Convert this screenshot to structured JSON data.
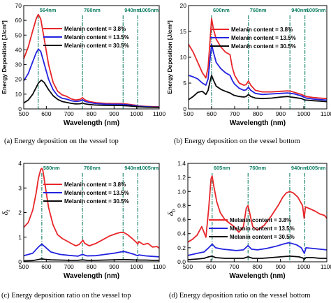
{
  "colors": {
    "s1": "#e8262a",
    "s2": "#2323e0",
    "s3": "#0a0a0a",
    "marker": "#0f7f63"
  },
  "chart_data": [
    {
      "type": "line",
      "caption": "(a) Energy deposition on the vessel top",
      "xlabel": "Wavelength (nm)",
      "ylabel": "Energy Deposition [J/cm³]",
      "xlim": [
        500,
        1100
      ],
      "ylim": [
        0,
        70
      ],
      "xticks": [
        500,
        600,
        700,
        800,
        900,
        1000,
        1100
      ],
      "yticks": [
        0,
        10,
        20,
        30,
        40,
        50,
        60,
        70
      ],
      "grid": false,
      "legend_placement": "top-right",
      "markers": [
        {
          "x": 564,
          "label": "564nm"
        },
        {
          "x": 760,
          "label": "760nm"
        },
        {
          "x": 940,
          "label": "940nm"
        },
        {
          "x": 1005,
          "label": "1005nm"
        }
      ],
      "series": [
        {
          "name": "Melanin content = 3.8%",
          "x": [
            500,
            520,
            540,
            555,
            564,
            575,
            590,
            610,
            630,
            650,
            670,
            690,
            710,
            730,
            750,
            760,
            770,
            790,
            820,
            860,
            900,
            930,
            945,
            960,
            990,
            1000,
            1005,
            1010,
            1040,
            1070,
            1100
          ],
          "y": [
            34,
            42,
            53,
            61,
            64,
            61,
            48,
            30,
            18,
            12,
            9.5,
            8.5,
            6.8,
            6,
            6.5,
            7.6,
            6.2,
            5,
            4.2,
            3.8,
            3.6,
            3.6,
            3.4,
            3.2,
            2.6,
            2.4,
            2.1,
            2,
            1.7,
            1.5,
            1.4
          ]
        },
        {
          "name": "Melanin content = 13.5%",
          "x": [
            500,
            520,
            540,
            555,
            565,
            575,
            590,
            610,
            630,
            650,
            670,
            690,
            710,
            730,
            750,
            760,
            770,
            790,
            820,
            860,
            900,
            930,
            945,
            960,
            990,
            1000,
            1005,
            1010,
            1040,
            1070,
            1100
          ],
          "y": [
            19,
            24,
            32,
            38,
            40.5,
            39,
            31,
            20,
            13,
            9,
            7.2,
            6.6,
            5.6,
            5,
            5.4,
            6.2,
            5.2,
            4.3,
            3.6,
            3.2,
            3.1,
            3.1,
            3,
            2.8,
            2.3,
            2.1,
            1.9,
            1.8,
            1.5,
            1.3,
            1.2
          ]
        },
        {
          "name": "Melanin content = 30.5%",
          "x": [
            500,
            520,
            540,
            555,
            565,
            578,
            590,
            610,
            630,
            650,
            670,
            690,
            710,
            730,
            750,
            760,
            770,
            790,
            820,
            860,
            900,
            930,
            945,
            960,
            990,
            1000,
            1005,
            1010,
            1040,
            1070,
            1100
          ],
          "y": [
            4,
            6,
            10,
            14.5,
            17.5,
            19.5,
            18,
            13,
            9,
            6.5,
            5,
            4.4,
            3.8,
            3.4,
            3.5,
            4,
            3.5,
            3,
            2.6,
            2.4,
            2.3,
            2.3,
            2.2,
            2.1,
            1.7,
            1.6,
            1.5,
            1.4,
            1.2,
            1.1,
            1
          ]
        }
      ]
    },
    {
      "type": "line",
      "caption": "(b) Energy deposition on the vessel bottom",
      "xlabel": "Wavelength (nm)",
      "ylabel": "Energy Deposition [J/cm³]",
      "xlim": [
        500,
        1100
      ],
      "ylim": [
        0,
        20
      ],
      "xticks": [
        500,
        600,
        700,
        800,
        900,
        1000,
        1100
      ],
      "yticks": [
        0,
        5,
        10,
        15,
        20
      ],
      "grid": false,
      "legend_placement": "top-right",
      "markers": [
        {
          "x": 600,
          "label": "600nm"
        },
        {
          "x": 760,
          "label": "760nm"
        },
        {
          "x": 940,
          "label": "940nm"
        },
        {
          "x": 1005,
          "label": "1005nm"
        }
      ],
      "series": [
        {
          "name": "Melanin content = 3.8%",
          "x": [
            500,
            520,
            540,
            560,
            575,
            585,
            593,
            600,
            608,
            620,
            640,
            660,
            680,
            690,
            700,
            720,
            740,
            750,
            760,
            770,
            790,
            820,
            860,
            900,
            930,
            945,
            960,
            990,
            1000,
            1005,
            1010,
            1040,
            1070,
            1100
          ],
          "y": [
            12.5,
            11,
            9,
            7,
            6,
            8,
            13,
            17.5,
            15.5,
            13.5,
            12,
            11,
            10.5,
            8,
            6.5,
            5,
            4.6,
            4.7,
            5.4,
            4.6,
            3.6,
            3.3,
            3.3,
            3.4,
            3.5,
            3.4,
            3.2,
            2.8,
            2.6,
            2.5,
            2.4,
            2.2,
            2.1,
            2
          ]
        },
        {
          "name": "Melanin content = 13.5%",
          "x": [
            500,
            520,
            540,
            560,
            575,
            585,
            593,
            600,
            608,
            620,
            640,
            660,
            680,
            690,
            700,
            720,
            740,
            750,
            760,
            770,
            790,
            820,
            860,
            900,
            930,
            945,
            960,
            990,
            1000,
            1005,
            1010,
            1040,
            1070,
            1100
          ],
          "y": [
            6.5,
            6.2,
            5.8,
            5,
            4.6,
            5.8,
            9.5,
            12.5,
            11,
            9,
            7.8,
            7,
            6.5,
            5.5,
            4.8,
            4,
            3.6,
            3.7,
            4.2,
            3.6,
            3,
            2.8,
            2.9,
            3,
            3.1,
            3,
            2.9,
            2.5,
            2.3,
            2.2,
            2.1,
            1.9,
            1.8,
            1.7
          ]
        },
        {
          "name": "Melanin content = 30.5%",
          "x": [
            500,
            520,
            540,
            560,
            575,
            585,
            593,
            600,
            608,
            620,
            640,
            660,
            680,
            690,
            700,
            720,
            740,
            750,
            760,
            770,
            790,
            820,
            860,
            900,
            930,
            945,
            960,
            990,
            1000,
            1005,
            1010,
            1040,
            1070,
            1100
          ],
          "y": [
            1.8,
            2.4,
            3.2,
            3.4,
            2.8,
            3.6,
            5.3,
            6.5,
            5.6,
            4.4,
            3.8,
            3.4,
            3.1,
            2.8,
            2.6,
            2.4,
            2.3,
            2.4,
            2.8,
            2.4,
            2.1,
            2,
            2.1,
            2.3,
            2.4,
            2.3,
            2.2,
            2,
            1.8,
            1.7,
            1.7,
            1.6,
            1.5,
            1.4
          ]
        }
      ]
    },
    {
      "type": "line",
      "caption": "(c) Energy deposition ratio on the vessel top",
      "xlabel": "Wavelength (nm)",
      "ylabel": "δ",
      "ylabel_sub": "t",
      "xlim": [
        500,
        1100
      ],
      "ylim": [
        0,
        4
      ],
      "xticks": [
        500,
        600,
        700,
        800,
        900,
        1000,
        1100
      ],
      "yticks": [
        0,
        1,
        2,
        3,
        4
      ],
      "grid": false,
      "legend_placement": "top-right",
      "markers": [
        {
          "x": 580,
          "label": "580nm"
        },
        {
          "x": 760,
          "label": "760nm"
        },
        {
          "x": 940,
          "label": "940nm"
        },
        {
          "x": 1005,
          "label": "1005nm"
        }
      ],
      "series": [
        {
          "name": "Melanin content = 3.8%",
          "x": [
            500,
            520,
            540,
            555,
            565,
            575,
            580,
            585,
            595,
            610,
            630,
            650,
            670,
            690,
            710,
            730,
            745,
            755,
            762,
            770,
            790,
            820,
            850,
            880,
            910,
            930,
            945,
            960,
            980,
            1000,
            1005,
            1010,
            1030,
            1050,
            1070,
            1090,
            1100
          ],
          "y": [
            1.4,
            1.6,
            2.1,
            2.8,
            3.4,
            3.75,
            3.8,
            3.7,
            3.1,
            2.2,
            1.5,
            1.1,
            0.95,
            0.85,
            0.75,
            0.65,
            0.7,
            0.8,
            0.88,
            0.75,
            0.65,
            0.75,
            0.9,
            1.05,
            1.15,
            1.2,
            1.18,
            1.1,
            0.95,
            0.78,
            0.72,
            0.82,
            0.7,
            0.75,
            0.6,
            0.62,
            0.55
          ]
        },
        {
          "name": "Melanin content = 13.5%",
          "x": [
            500,
            540,
            565,
            580,
            595,
            620,
            660,
            700,
            740,
            760,
            780,
            820,
            860,
            900,
            930,
            945,
            960,
            990,
            1000,
            1005,
            1010,
            1040,
            1070,
            1100
          ],
          "y": [
            0.25,
            0.35,
            0.6,
            0.72,
            0.6,
            0.4,
            0.3,
            0.26,
            0.23,
            0.3,
            0.24,
            0.25,
            0.3,
            0.35,
            0.4,
            0.42,
            0.38,
            0.3,
            0.26,
            0.25,
            0.28,
            0.24,
            0.22,
            0.2
          ]
        },
        {
          "name": "Melanin content = 30.5%",
          "x": [
            500,
            540,
            565,
            580,
            595,
            620,
            660,
            700,
            740,
            760,
            780,
            820,
            860,
            900,
            940,
            980,
            1005,
            1040,
            1070,
            1100
          ],
          "y": [
            0.04,
            0.05,
            0.09,
            0.12,
            0.1,
            0.08,
            0.07,
            0.06,
            0.06,
            0.08,
            0.06,
            0.06,
            0.07,
            0.08,
            0.09,
            0.08,
            0.07,
            0.07,
            0.06,
            0.06
          ]
        }
      ]
    },
    {
      "type": "line",
      "caption": "(d) Energy deposition ratio on the vessel bottom",
      "xlabel": "Wavelength (nm)",
      "ylabel": "δ",
      "ylabel_sub": "b",
      "xlim": [
        500,
        1100
      ],
      "ylim": [
        0,
        1.4
      ],
      "xticks": [
        500,
        600,
        700,
        800,
        900,
        1000,
        1100
      ],
      "yticks": [
        0,
        0.2,
        0.4,
        0.6,
        0.8,
        1.0,
        1.2,
        1.4
      ],
      "ytick_labels": [
        "0.0",
        "0.2",
        "0.4",
        "0.6",
        "0.8",
        "1.0",
        "1.2",
        "1.4"
      ],
      "grid": false,
      "legend_placement": "bottom-right",
      "markers": [
        {
          "x": 605,
          "label": "605nm"
        },
        {
          "x": 760,
          "label": "760nm"
        },
        {
          "x": 940,
          "label": "940nm"
        },
        {
          "x": 1005,
          "label": "1005nm"
        }
      ],
      "series": [
        {
          "name": "Melanin content = 3.8%",
          "x": [
            500,
            520,
            540,
            560,
            578,
            590,
            600,
            605,
            612,
            625,
            640,
            660,
            680,
            700,
            720,
            740,
            752,
            760,
            768,
            780,
            800,
            830,
            860,
            890,
            910,
            925,
            940,
            955,
            975,
            995,
            1000,
            1002,
            1008,
            1030,
            1050,
            1070,
            1090,
            1100
          ],
          "y": [
            0.28,
            0.32,
            0.38,
            0.5,
            0.35,
            0.75,
            1.18,
            1.22,
            1.08,
            0.85,
            0.7,
            0.6,
            0.55,
            0.5,
            0.42,
            0.5,
            0.76,
            0.8,
            0.68,
            0.5,
            0.45,
            0.52,
            0.65,
            0.8,
            0.92,
            0.98,
            1.0,
            0.98,
            0.92,
            0.8,
            0.68,
            0.62,
            0.78,
            0.75,
            0.72,
            0.68,
            0.66,
            0.62
          ]
        },
        {
          "name": "Melanin content = 13.5%",
          "x": [
            500,
            540,
            570,
            590,
            605,
            620,
            650,
            680,
            710,
            740,
            760,
            775,
            800,
            840,
            880,
            910,
            935,
            950,
            970,
            990,
            1000,
            1003,
            1010,
            1040,
            1070,
            1100
          ],
          "y": [
            0.09,
            0.12,
            0.14,
            0.2,
            0.25,
            0.2,
            0.18,
            0.17,
            0.16,
            0.17,
            0.23,
            0.18,
            0.17,
            0.19,
            0.22,
            0.25,
            0.27,
            0.26,
            0.24,
            0.2,
            0.14,
            0.12,
            0.2,
            0.19,
            0.18,
            0.17
          ]
        },
        {
          "name": "Melanin content = 30.5%",
          "x": [
            500,
            540,
            570,
            590,
            605,
            620,
            660,
            700,
            740,
            760,
            780,
            820,
            860,
            900,
            940,
            980,
            1000,
            1003,
            1010,
            1040,
            1070,
            1100
          ],
          "y": [
            0.03,
            0.04,
            0.05,
            0.07,
            0.08,
            0.06,
            0.05,
            0.05,
            0.05,
            0.07,
            0.05,
            0.05,
            0.06,
            0.07,
            0.08,
            0.07,
            0.05,
            0.04,
            0.06,
            0.06,
            0.05,
            0.05
          ]
        }
      ]
    }
  ]
}
